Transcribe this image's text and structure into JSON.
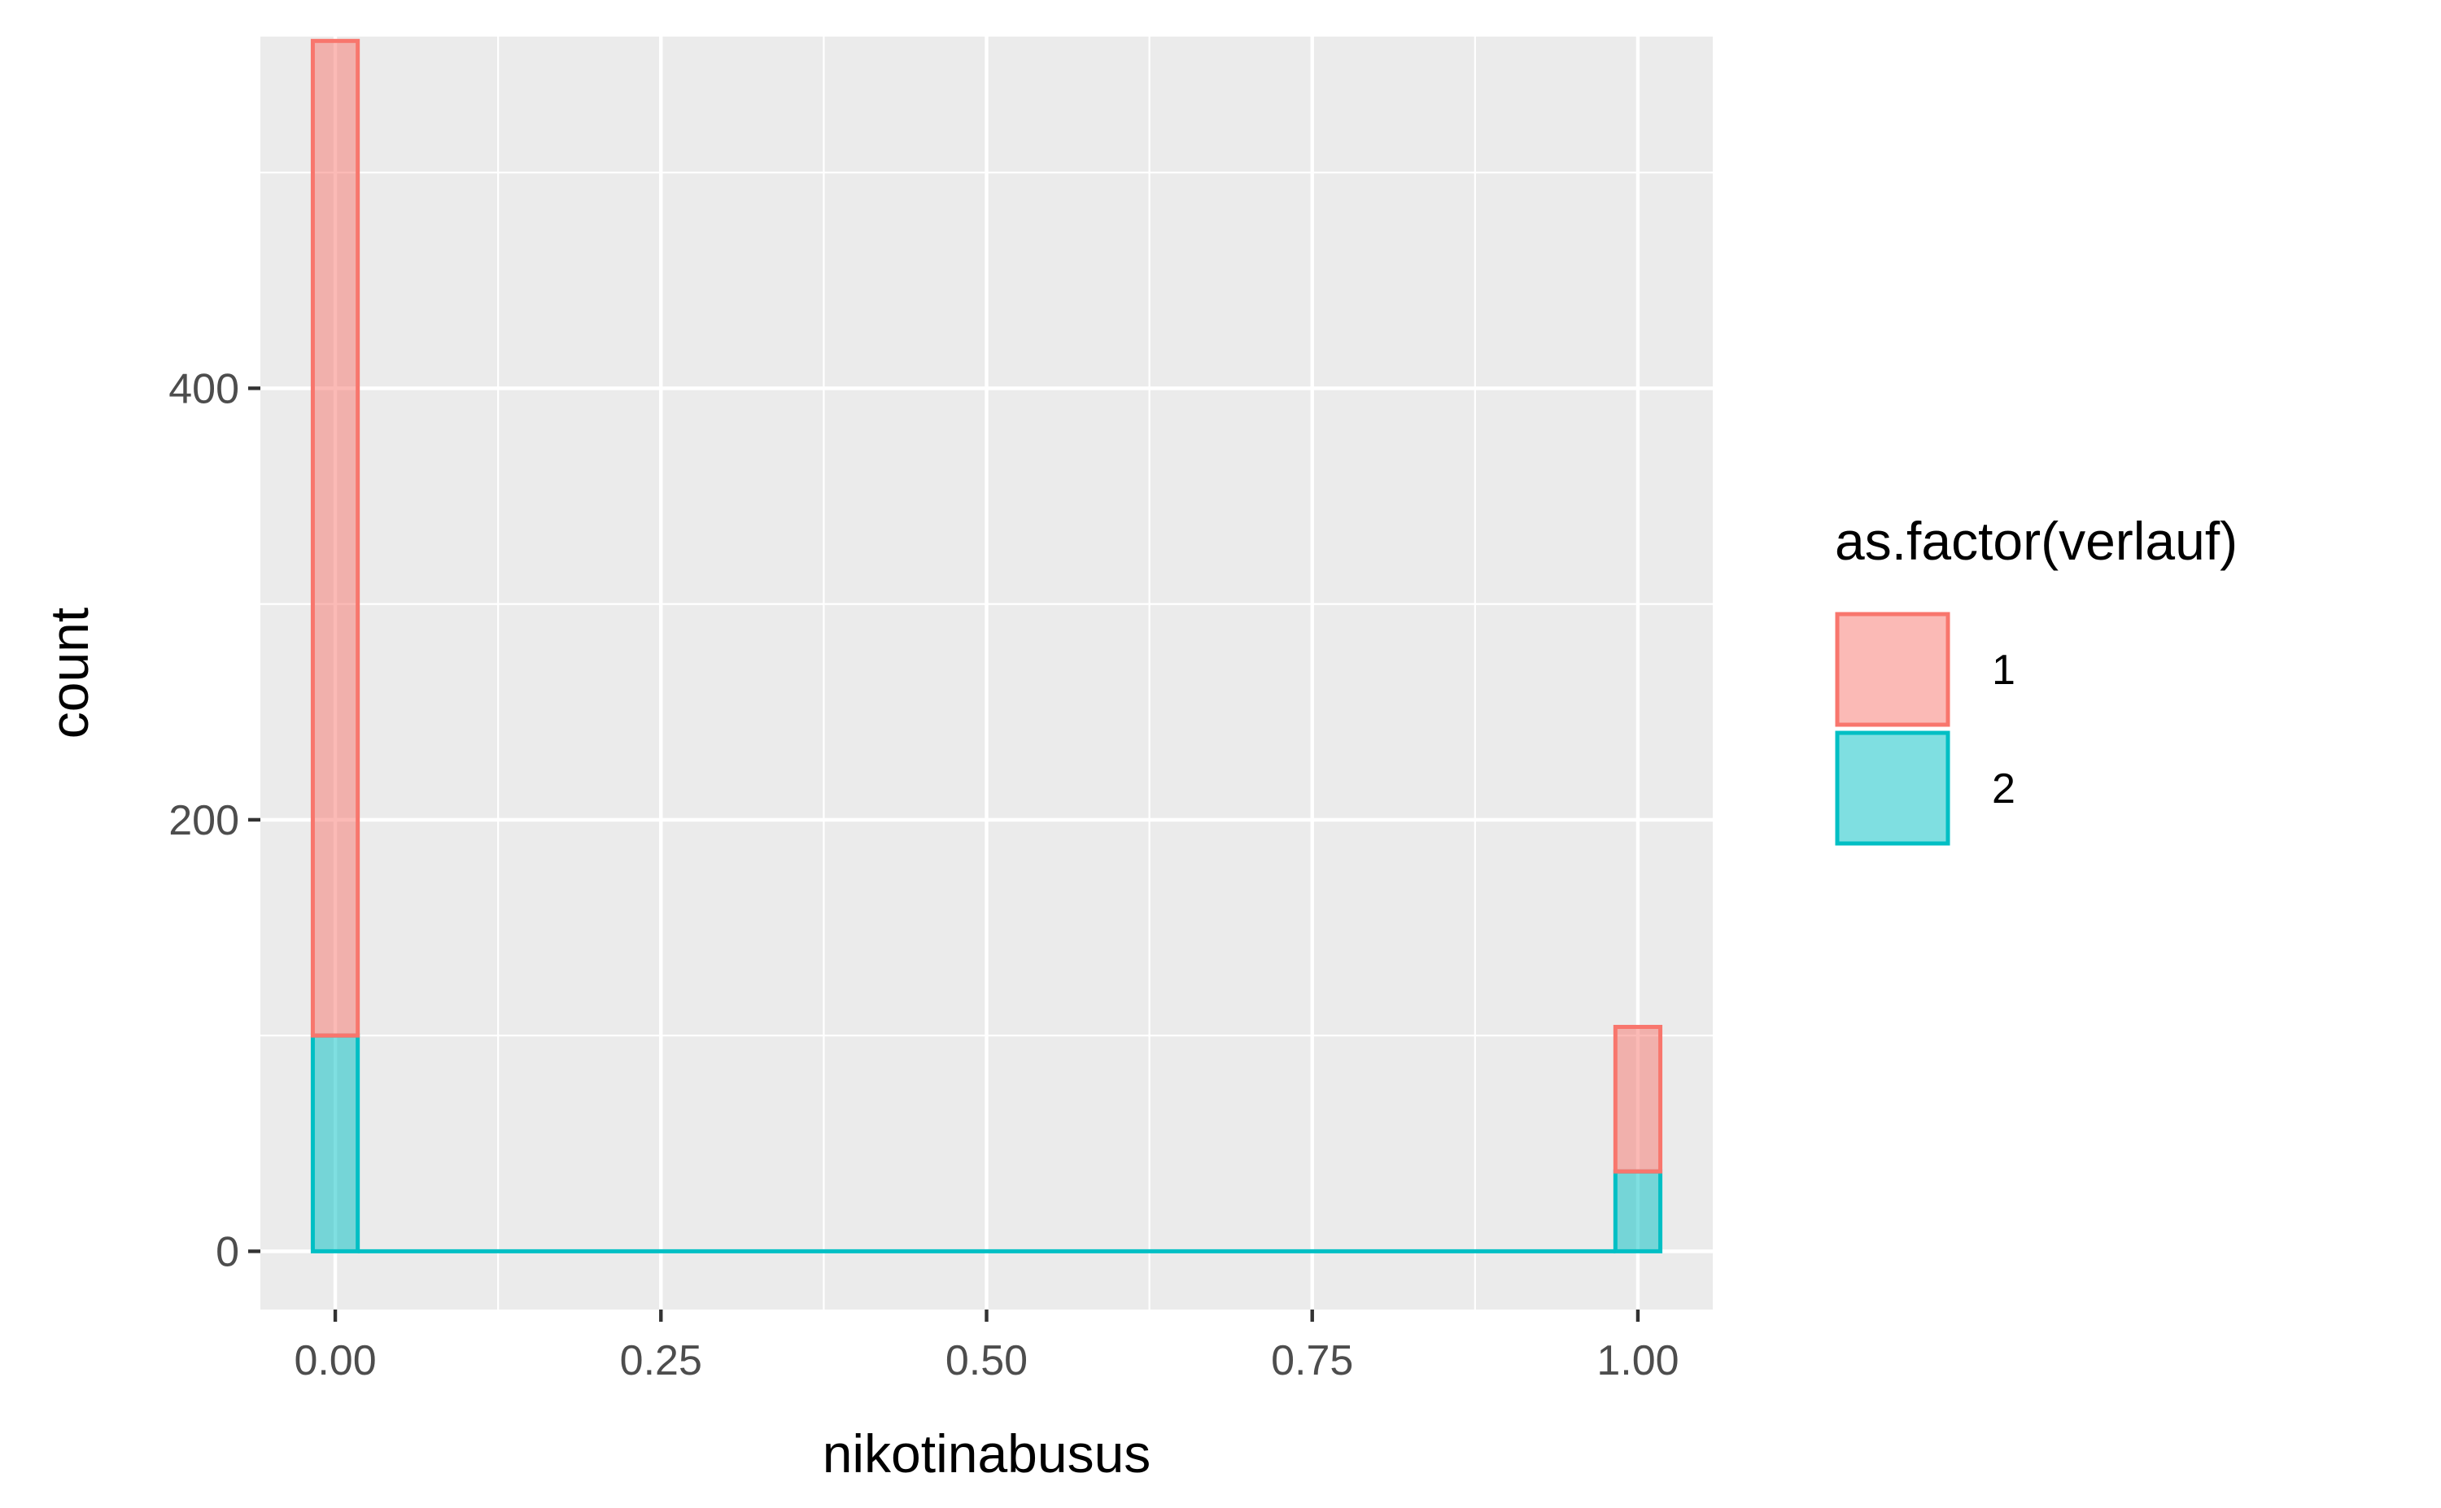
{
  "chart_data": {
    "type": "bar",
    "subtype": "stacked-histogram",
    "xlabel": "nikotinabusus",
    "ylabel": "count",
    "xlim": [
      -0.0575,
      1.0575
    ],
    "ylim": [
      -27,
      563
    ],
    "x_ticks": [
      0,
      0.25,
      0.5,
      0.75,
      1
    ],
    "x_tick_labels": [
      "0.00",
      "0.25",
      "0.50",
      "0.75",
      "1.00"
    ],
    "y_ticks": [
      0,
      200,
      400
    ],
    "y_tick_labels": [
      "0",
      "200",
      "400"
    ],
    "grid": true,
    "bin_width": 0.0345,
    "bins": [
      0.0,
      1.0
    ],
    "series": [
      {
        "name": "1",
        "color": "#F8766D",
        "fill": "#F8766D",
        "values": [
          461,
          67
        ]
      },
      {
        "name": "2",
        "color": "#00BFC4",
        "fill": "#00BFC4",
        "values": [
          100,
          37
        ]
      }
    ],
    "stacked_order": [
      "2",
      "1"
    ],
    "legend": {
      "title": "as.factor(verlauf)",
      "position": "right"
    },
    "panel_background": "#EBEBEB",
    "grid_color": "#FFFFFF"
  }
}
